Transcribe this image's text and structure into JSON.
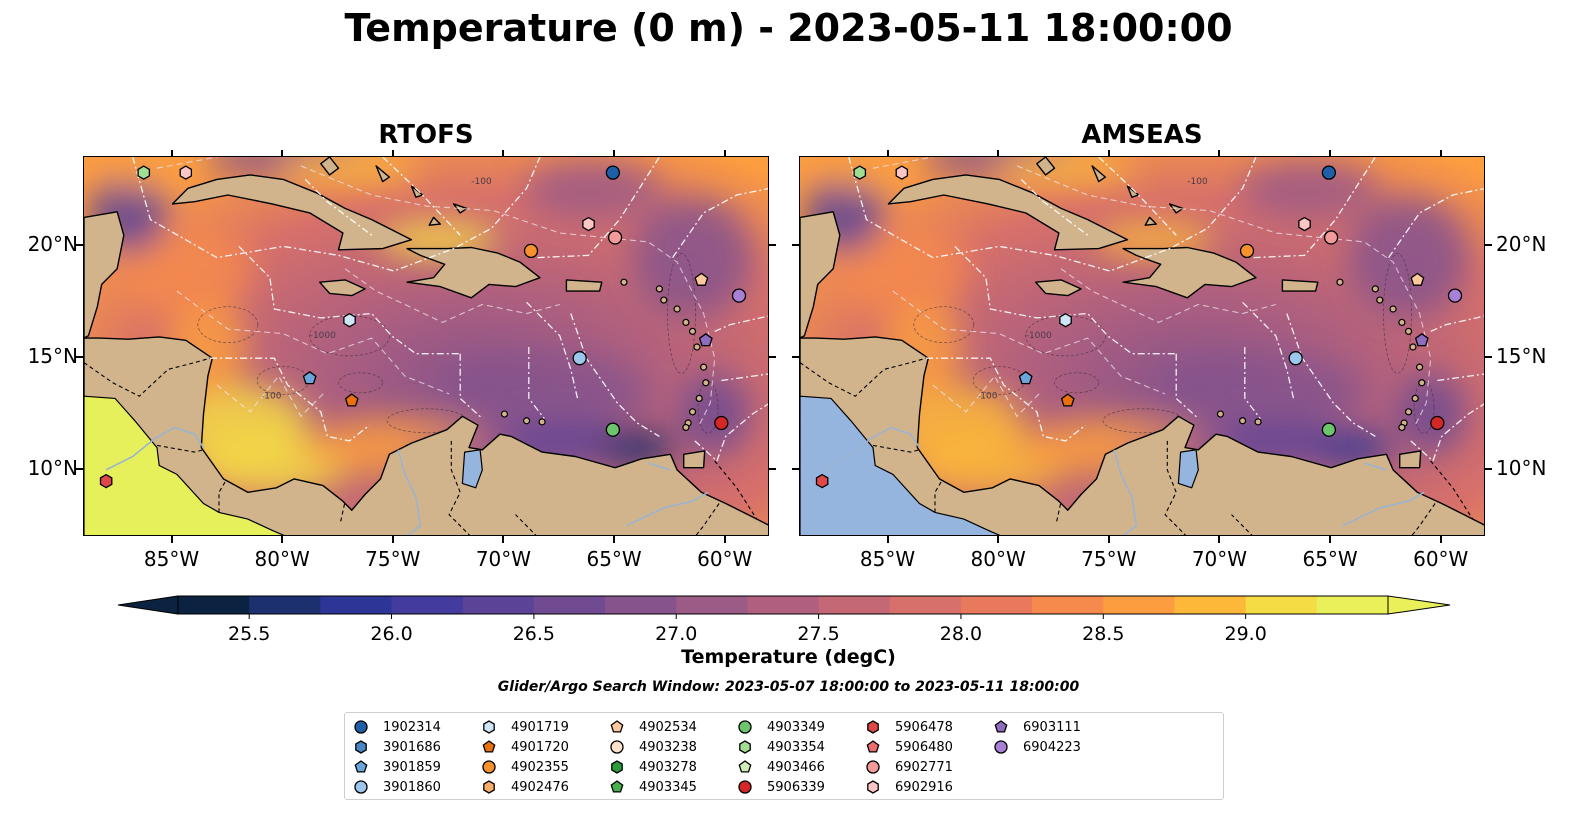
{
  "title": "Temperature (0 m) - 2023-05-11 18:00:00",
  "panels": [
    {
      "title": "RTOFS",
      "land_south": "#d2b48c",
      "pacific_fill": "#e6f05a"
    },
    {
      "title": "AMSEAS",
      "land_south": "#d2b48c",
      "pacific_fill": "#95b5df"
    }
  ],
  "lat_ticks": [
    "10°N",
    "15°N",
    "20°N"
  ],
  "lon_ticks": [
    "85°W",
    "80°W",
    "75°W",
    "70°W",
    "65°W",
    "60°W"
  ],
  "bathy_labels": [
    "-100",
    "-1000"
  ],
  "colorbar": {
    "ticks": [
      "25.5",
      "26.0",
      "26.5",
      "27.0",
      "27.5",
      "28.0",
      "28.5",
      "29.0"
    ],
    "label": "Temperature (degC)",
    "min": 25.25,
    "max": 29.5,
    "colors": [
      "#0b2240",
      "#1c2f6f",
      "#2d3696",
      "#443b9e",
      "#5b4398",
      "#704b92",
      "#86538c",
      "#9c5a86",
      "#b0607e",
      "#c56875",
      "#d7706a",
      "#e8795d",
      "#f68a4c",
      "#fc9d40",
      "#fdb83a",
      "#f6dc44",
      "#eaf05a"
    ]
  },
  "search_window": "Glider/Argo Search Window: 2023-05-07 18:00:00 to 2023-05-11 18:00:00",
  "legend": [
    {
      "id": "1902314",
      "marker": "circle",
      "color": "#1f5fa8"
    },
    {
      "id": "3901686",
      "marker": "hexagon",
      "color": "#4a86c6"
    },
    {
      "id": "3901859",
      "marker": "pentagon",
      "color": "#6aa6dc"
    },
    {
      "id": "3901860",
      "marker": "circle",
      "color": "#9dc6ec"
    },
    {
      "id": "4901719",
      "marker": "hexagon",
      "color": "#cfe6f8"
    },
    {
      "id": "4901720",
      "marker": "pentagon",
      "color": "#e8700d"
    },
    {
      "id": "4902355",
      "marker": "circle",
      "color": "#f7912e"
    },
    {
      "id": "4902476",
      "marker": "hexagon",
      "color": "#f9ad6b"
    },
    {
      "id": "4902534",
      "marker": "pentagon",
      "color": "#fcc89c"
    },
    {
      "id": "4903238",
      "marker": "circle",
      "color": "#fde3cc"
    },
    {
      "id": "4903278",
      "marker": "hexagon",
      "color": "#2e9c3a"
    },
    {
      "id": "4903345",
      "marker": "pentagon",
      "color": "#48b04f"
    },
    {
      "id": "4903349",
      "marker": "circle",
      "color": "#6cc56c"
    },
    {
      "id": "4903354",
      "marker": "hexagon",
      "color": "#a2dd93"
    },
    {
      "id": "4903466",
      "marker": "pentagon",
      "color": "#cfeeb8"
    },
    {
      "id": "5906339",
      "marker": "circle",
      "color": "#d62728"
    },
    {
      "id": "5906478",
      "marker": "hexagon",
      "color": "#e04848"
    },
    {
      "id": "5906480",
      "marker": "pentagon",
      "color": "#ea6e6e"
    },
    {
      "id": "6902771",
      "marker": "circle",
      "color": "#f49a9a"
    },
    {
      "id": "6902916",
      "marker": "hexagon",
      "color": "#fcc6c4"
    },
    {
      "id": "6903111",
      "marker": "pentagon",
      "color": "#8e6cc0"
    },
    {
      "id": "6904223",
      "marker": "circle",
      "color": "#a880d6"
    }
  ],
  "markers": [
    {
      "id": "4903354",
      "lon": -86.3,
      "lat": 23.3
    },
    {
      "id": "6902916",
      "lon": -84.4,
      "lat": 23.3
    },
    {
      "id": "1902314",
      "lon": -65.1,
      "lat": 23.3
    },
    {
      "id": "6902916",
      "lon": -66.2,
      "lat": 21.0
    },
    {
      "id": "6902771",
      "lon": -65.0,
      "lat": 20.4
    },
    {
      "id": "4902355",
      "lon": -68.8,
      "lat": 19.8
    },
    {
      "id": "4902534",
      "lon": -61.1,
      "lat": 18.5
    },
    {
      "id": "6904223",
      "lon": -59.4,
      "lat": 17.8
    },
    {
      "id": "4901719",
      "lon": -77.0,
      "lat": 16.7
    },
    {
      "id": "6903111",
      "lon": -60.9,
      "lat": 15.8
    },
    {
      "id": "3901860",
      "lon": -66.6,
      "lat": 15.0
    },
    {
      "id": "3901859",
      "lon": -78.8,
      "lat": 14.1
    },
    {
      "id": "4901720",
      "lon": -76.9,
      "lat": 13.1
    },
    {
      "id": "5906339",
      "lon": -60.2,
      "lat": 12.1
    },
    {
      "id": "4903349",
      "lon": -65.1,
      "lat": 11.8
    },
    {
      "id": "5906478",
      "lon": -88.0,
      "lat": 9.5
    }
  ]
}
